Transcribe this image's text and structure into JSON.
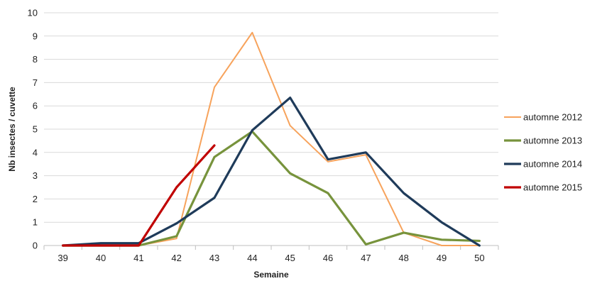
{
  "chart_data": {
    "type": "line",
    "title": "",
    "xlabel": "Semaine",
    "ylabel": "Nb insectes / cuvette",
    "x": [
      39,
      40,
      41,
      42,
      43,
      44,
      45,
      46,
      47,
      48,
      49,
      50
    ],
    "ylim": [
      0,
      10
    ],
    "yticks": [
      0,
      1,
      2,
      3,
      4,
      5,
      6,
      7,
      8,
      9,
      10
    ],
    "grid": true,
    "legend_position": "right",
    "series": [
      {
        "name": "automne 2012",
        "color": "#F7A35C",
        "values": [
          0,
          0,
          0,
          0.3,
          6.8,
          9.15,
          5.15,
          3.6,
          3.9,
          0.55,
          0,
          0
        ]
      },
      {
        "name": "automne 2013",
        "color": "#77933C",
        "values": [
          0,
          0,
          0,
          0.4,
          3.8,
          4.9,
          3.1,
          2.25,
          0.05,
          0.55,
          0.25,
          0.2
        ]
      },
      {
        "name": "automne 2014",
        "color": "#1F3B5A",
        "values": [
          0,
          0.1,
          0.1,
          0.95,
          2.05,
          4.95,
          6.35,
          3.7,
          4.0,
          2.25,
          1.0,
          0
        ]
      },
      {
        "name": "automne 2015",
        "color": "#C00000",
        "values": [
          0,
          0,
          0,
          2.5,
          4.3,
          null,
          null,
          null,
          null,
          null,
          null,
          null
        ]
      }
    ]
  }
}
